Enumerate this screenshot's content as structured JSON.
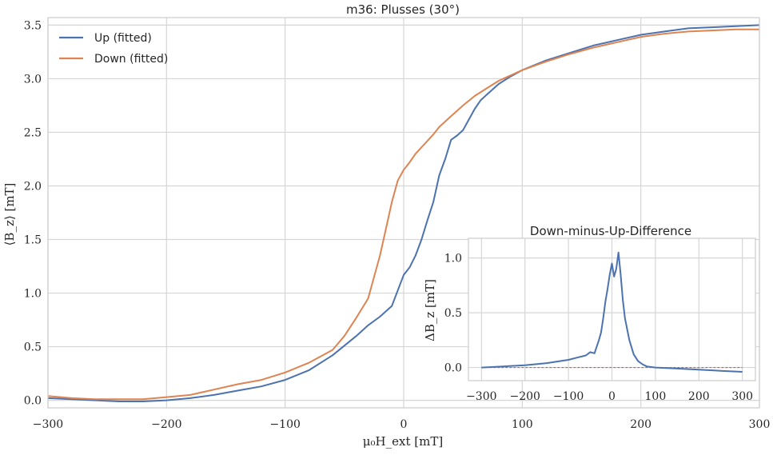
{
  "chart_data": [
    {
      "type": "line",
      "title": "m36: Plusses (30°)",
      "xlabel": "μ₀H_ext [mT]",
      "ylabel": "⟨B_z⟩ [mT]",
      "xlim": [
        -300,
        300
      ],
      "ylim": [
        -0.07,
        3.57
      ],
      "xticks": [
        -300,
        -200,
        -100,
        0,
        100,
        200,
        300
      ],
      "xtick_labels": [
        "−300",
        "−200",
        "−100",
        "0",
        "100",
        "200",
        "300"
      ],
      "yticks": [
        0.0,
        0.5,
        1.0,
        1.5,
        2.0,
        2.5,
        3.0,
        3.5
      ],
      "ytick_labels": [
        "0.0",
        "0.5",
        "1.0",
        "1.5",
        "2.0",
        "2.5",
        "3.0",
        "3.5"
      ],
      "grid": true,
      "legend": "top-left",
      "series": [
        {
          "name": "Up (fitted)",
          "color": "#4c72b0",
          "x": [
            -300,
            -280,
            -260,
            -240,
            -220,
            -200,
            -180,
            -160,
            -140,
            -120,
            -100,
            -80,
            -60,
            -40,
            -30,
            -20,
            -10,
            0,
            5,
            10,
            15,
            20,
            25,
            30,
            35,
            40,
            45,
            50,
            55,
            60,
            65,
            70,
            80,
            90,
            100,
            120,
            140,
            160,
            180,
            200,
            220,
            240,
            260,
            280,
            300
          ],
          "y": [
            0.02,
            0.01,
            0.0,
            -0.01,
            -0.01,
            0.0,
            0.02,
            0.05,
            0.09,
            0.13,
            0.19,
            0.28,
            0.42,
            0.6,
            0.7,
            0.78,
            0.88,
            1.17,
            1.24,
            1.35,
            1.5,
            1.68,
            1.85,
            2.1,
            2.25,
            2.43,
            2.47,
            2.52,
            2.62,
            2.72,
            2.8,
            2.85,
            2.95,
            3.02,
            3.08,
            3.17,
            3.24,
            3.31,
            3.36,
            3.41,
            3.44,
            3.47,
            3.48,
            3.49,
            3.5
          ]
        },
        {
          "name": "Down (fitted)",
          "color": "#dd8452",
          "x": [
            -300,
            -280,
            -260,
            -240,
            -220,
            -200,
            -180,
            -160,
            -140,
            -120,
            -100,
            -80,
            -60,
            -50,
            -40,
            -30,
            -25,
            -20,
            -15,
            -10,
            -5,
            0,
            5,
            10,
            15,
            20,
            25,
            30,
            40,
            50,
            60,
            70,
            80,
            90,
            100,
            120,
            140,
            160,
            180,
            200,
            220,
            240,
            260,
            280,
            300
          ],
          "y": [
            0.04,
            0.02,
            0.01,
            0.01,
            0.01,
            0.03,
            0.05,
            0.1,
            0.15,
            0.19,
            0.26,
            0.35,
            0.47,
            0.6,
            0.77,
            0.95,
            1.15,
            1.35,
            1.6,
            1.85,
            2.05,
            2.15,
            2.22,
            2.3,
            2.36,
            2.42,
            2.48,
            2.55,
            2.65,
            2.75,
            2.84,
            2.91,
            2.98,
            3.03,
            3.08,
            3.16,
            3.23,
            3.29,
            3.34,
            3.39,
            3.42,
            3.44,
            3.45,
            3.46,
            3.46
          ]
        }
      ]
    },
    {
      "type": "line",
      "title": "Down-minus-Up-Difference",
      "xlabel": "",
      "ylabel": "ΔB_z [mT]",
      "xlim": [
        -330,
        330
      ],
      "ylim": [
        -0.12,
        1.18
      ],
      "xticks": [
        -300,
        -200,
        -100,
        0,
        100,
        200,
        300
      ],
      "xtick_labels": [
        "−300",
        "−200",
        "−100",
        "0",
        "100",
        "200",
        "300"
      ],
      "yticks": [
        0.0,
        0.5,
        1.0
      ],
      "ytick_labels": [
        "0.0",
        "0.5",
        "1.0"
      ],
      "grid": true,
      "reference_line": {
        "y": 0.0,
        "color": "#c44e52"
      },
      "series": [
        {
          "name": "",
          "color": "#4c72b0",
          "x": [
            -300,
            -250,
            -200,
            -150,
            -100,
            -80,
            -60,
            -50,
            -40,
            -30,
            -25,
            -20,
            -15,
            -10,
            -5,
            0,
            5,
            10,
            15,
            20,
            25,
            30,
            40,
            50,
            60,
            70,
            80,
            100,
            150,
            200,
            250,
            300
          ],
          "y": [
            0.0,
            0.01,
            0.02,
            0.04,
            0.07,
            0.09,
            0.11,
            0.14,
            0.13,
            0.25,
            0.32,
            0.45,
            0.6,
            0.72,
            0.85,
            0.95,
            0.83,
            0.9,
            1.05,
            0.85,
            0.62,
            0.45,
            0.25,
            0.12,
            0.06,
            0.03,
            0.01,
            0.0,
            -0.01,
            -0.02,
            -0.03,
            -0.04
          ]
        }
      ]
    }
  ]
}
